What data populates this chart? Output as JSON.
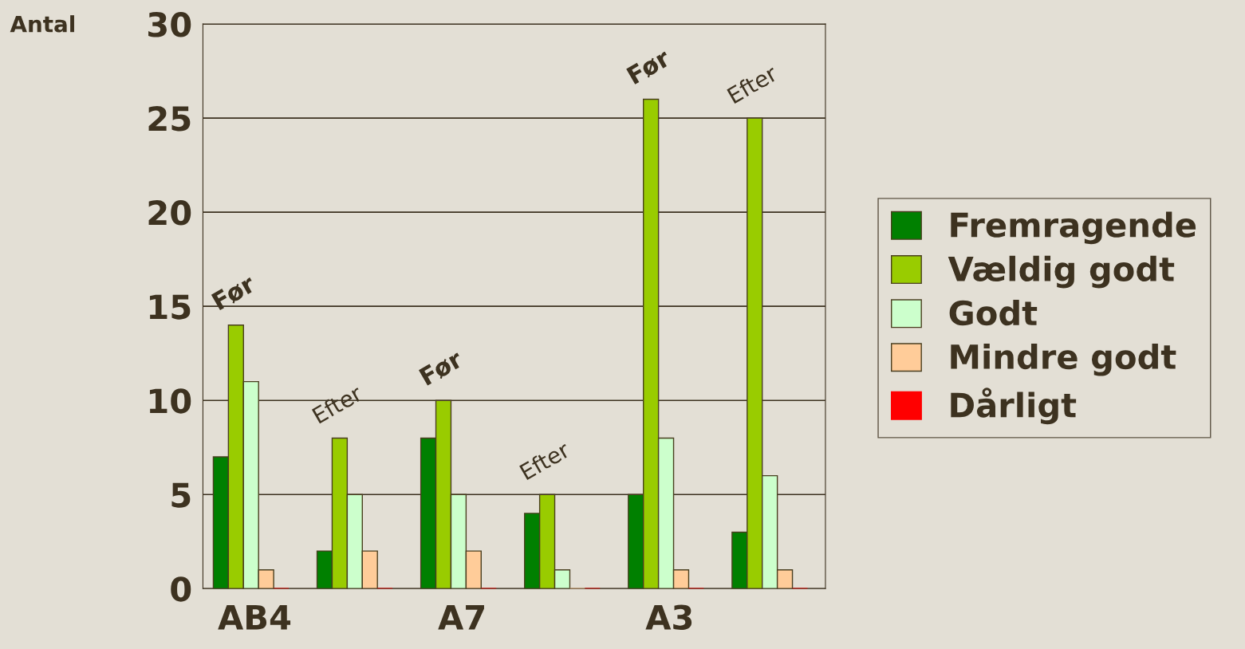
{
  "chart_data": {
    "type": "bar",
    "ylabel": "Antal",
    "categories": [
      "AB4",
      null,
      "A7",
      null,
      "A3",
      null
    ],
    "series": [
      {
        "name": "Fremragende",
        "color": "#008000",
        "values": [
          7,
          2,
          8,
          4,
          5,
          3
        ]
      },
      {
        "name": "Vældig godt",
        "color": "#99cc00",
        "values": [
          14,
          8,
          10,
          5,
          26,
          25
        ]
      },
      {
        "name": "Godt",
        "color": "#ccffcc",
        "values": [
          11,
          5,
          5,
          1,
          8,
          6
        ]
      },
      {
        "name": "Mindre godt",
        "color": "#ffcc99",
        "values": [
          1,
          2,
          2,
          0,
          1,
          1
        ]
      },
      {
        "name": "Dårligt",
        "color": "#ff0000",
        "values": [
          0,
          0,
          0,
          0,
          0,
          0
        ]
      }
    ],
    "annotations": [
      "Før",
      "Efter",
      "Før",
      "Efter",
      "Før",
      "Efter"
    ],
    "ylim": [
      0,
      30
    ],
    "yticks": [
      0,
      5,
      10,
      15,
      20,
      25,
      30
    ],
    "grid": "y",
    "legend": "right"
  }
}
